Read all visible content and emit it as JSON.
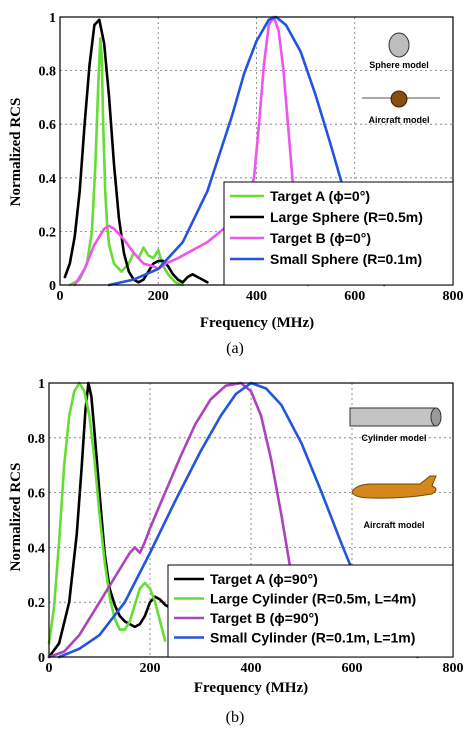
{
  "chart_data": [
    {
      "type": "line",
      "xlabel": "Frequency (MHz)",
      "ylabel": "Normalized RCS",
      "caption": "(a)",
      "xlim": [
        0,
        800
      ],
      "ylim": [
        0,
        1
      ],
      "xticks": [
        "0",
        "200",
        "400",
        "600",
        "800"
      ],
      "yticks": [
        "0",
        "0.2",
        "0.4",
        "0.6",
        "0.8",
        "1"
      ],
      "grid": true,
      "legend_position": "bottom-right",
      "inset_labels": [
        "Sphere model",
        "Aircraft model"
      ],
      "series": [
        {
          "name": "Target A (ϕ=0°)",
          "color": "#66dd33",
          "x": [
            20,
            40,
            55,
            65,
            72,
            78,
            82,
            85,
            88,
            92,
            96,
            100,
            110,
            125,
            140,
            150,
            160,
            170,
            180,
            190,
            200,
            210,
            220,
            235,
            250
          ],
          "y": [
            0,
            0.02,
            0.08,
            0.2,
            0.45,
            0.75,
            0.92,
            0.85,
            0.6,
            0.35,
            0.22,
            0.15,
            0.08,
            0.05,
            0.08,
            0.12,
            0.1,
            0.14,
            0.11,
            0.1,
            0.13,
            0.07,
            0.04,
            0.01,
            0
          ]
        },
        {
          "name": "Large Sphere (R=0.5m)",
          "color": "#000000",
          "x": [
            10,
            20,
            30,
            40,
            50,
            60,
            70,
            80,
            90,
            100,
            110,
            120,
            130,
            140,
            150,
            160,
            170,
            180,
            190,
            200,
            210,
            220,
            230,
            240,
            250,
            260,
            270,
            280,
            290,
            300
          ],
          "y": [
            0.03,
            0.08,
            0.18,
            0.35,
            0.6,
            0.82,
            0.97,
            0.99,
            0.9,
            0.7,
            0.45,
            0.25,
            0.12,
            0.05,
            0.02,
            0.01,
            0.02,
            0.05,
            0.08,
            0.09,
            0.09,
            0.07,
            0.04,
            0.02,
            0.01,
            0.03,
            0.04,
            0.03,
            0.02,
            0.01
          ]
        },
        {
          "name": "Target B (ϕ=0°)",
          "color": "#ee55ee",
          "x": [
            30,
            50,
            70,
            90,
            100,
            110,
            130,
            150,
            170,
            190,
            200,
            215,
            240,
            260,
            280,
            300,
            320,
            340,
            360,
            380,
            395,
            405,
            415,
            425,
            435,
            445,
            455,
            465,
            475,
            485,
            495,
            505
          ],
          "y": [
            0,
            0.06,
            0.15,
            0.21,
            0.22,
            0.21,
            0.17,
            0.12,
            0.08,
            0.07,
            0.06,
            0.08,
            0.1,
            0.12,
            0.14,
            0.16,
            0.19,
            0.22,
            0.25,
            0.3,
            0.4,
            0.6,
            0.82,
            0.97,
            1.0,
            0.95,
            0.8,
            0.58,
            0.36,
            0.18,
            0.06,
            0
          ]
        },
        {
          "name": "Small Sphere (R=0.1m)",
          "color": "#2255dd",
          "x": [
            100,
            150,
            200,
            250,
            300,
            350,
            375,
            400,
            425,
            440,
            460,
            490,
            520,
            550,
            580,
            610,
            640,
            660
          ],
          "y": [
            0,
            0.02,
            0.06,
            0.16,
            0.35,
            0.63,
            0.79,
            0.91,
            0.99,
            1.0,
            0.97,
            0.87,
            0.71,
            0.53,
            0.34,
            0.16,
            0.05,
            0
          ]
        }
      ]
    },
    {
      "type": "line",
      "xlabel": "Frequency (MHz)",
      "ylabel": "Normalized RCS",
      "caption": "(b)",
      "xlim": [
        0,
        800
      ],
      "ylim": [
        0,
        1
      ],
      "xticks": [
        "0",
        "200",
        "400",
        "600",
        "800"
      ],
      "yticks": [
        "0",
        "0.2",
        "0.4",
        "0.6",
        "0.8",
        "1"
      ],
      "grid": true,
      "legend_position": "bottom-right",
      "inset_labels": [
        "Cylinder model",
        "Aircraft model"
      ],
      "series": [
        {
          "name": "Target A (ϕ=90°)",
          "color": "#000000",
          "x": [
            0,
            20,
            40,
            55,
            65,
            72,
            78,
            84,
            90,
            100,
            110,
            120,
            130,
            140,
            150,
            160,
            170,
            180,
            190,
            200,
            210,
            220,
            230,
            240,
            250
          ],
          "y": [
            0,
            0.05,
            0.2,
            0.45,
            0.7,
            0.9,
            1.0,
            0.95,
            0.82,
            0.6,
            0.38,
            0.25,
            0.19,
            0.15,
            0.13,
            0.12,
            0.11,
            0.12,
            0.15,
            0.2,
            0.22,
            0.21,
            0.19,
            0.18,
            0.19
          ]
        },
        {
          "name": "Large Cylinder (R=0.5m, L=4m)",
          "color": "#66dd33",
          "x": [
            0,
            10,
            20,
            30,
            40,
            50,
            60,
            70,
            80,
            90,
            100,
            110,
            120,
            130,
            140,
            150,
            160,
            170,
            180,
            190,
            200,
            210,
            220,
            230
          ],
          "y": [
            0.05,
            0.18,
            0.42,
            0.7,
            0.88,
            0.97,
            1.0,
            0.97,
            0.88,
            0.72,
            0.52,
            0.35,
            0.22,
            0.14,
            0.1,
            0.1,
            0.13,
            0.19,
            0.25,
            0.27,
            0.25,
            0.2,
            0.13,
            0.06
          ]
        },
        {
          "name": "Target B (ϕ=90°)",
          "color": "#aa44bb",
          "x": [
            0,
            30,
            60,
            90,
            120,
            140,
            160,
            170,
            180,
            190,
            200,
            230,
            260,
            290,
            320,
            350,
            380,
            400,
            420,
            440,
            460,
            480,
            500,
            520
          ],
          "y": [
            0,
            0.02,
            0.08,
            0.17,
            0.26,
            0.32,
            0.38,
            0.4,
            0.38,
            0.42,
            0.47,
            0.6,
            0.73,
            0.85,
            0.94,
            0.99,
            1.0,
            0.97,
            0.88,
            0.72,
            0.52,
            0.3,
            0.12,
            0.02
          ]
        },
        {
          "name": "Small Cylinder (R=0.1m, L=1m)",
          "color": "#2255dd",
          "x": [
            20,
            60,
            100,
            150,
            200,
            250,
            300,
            340,
            370,
            400,
            430,
            460,
            500,
            540,
            580,
            620,
            660,
            700,
            730
          ],
          "y": [
            0,
            0.03,
            0.08,
            0.2,
            0.38,
            0.57,
            0.75,
            0.88,
            0.96,
            1.0,
            0.98,
            0.92,
            0.78,
            0.6,
            0.41,
            0.23,
            0.1,
            0.03,
            0
          ]
        }
      ]
    }
  ]
}
